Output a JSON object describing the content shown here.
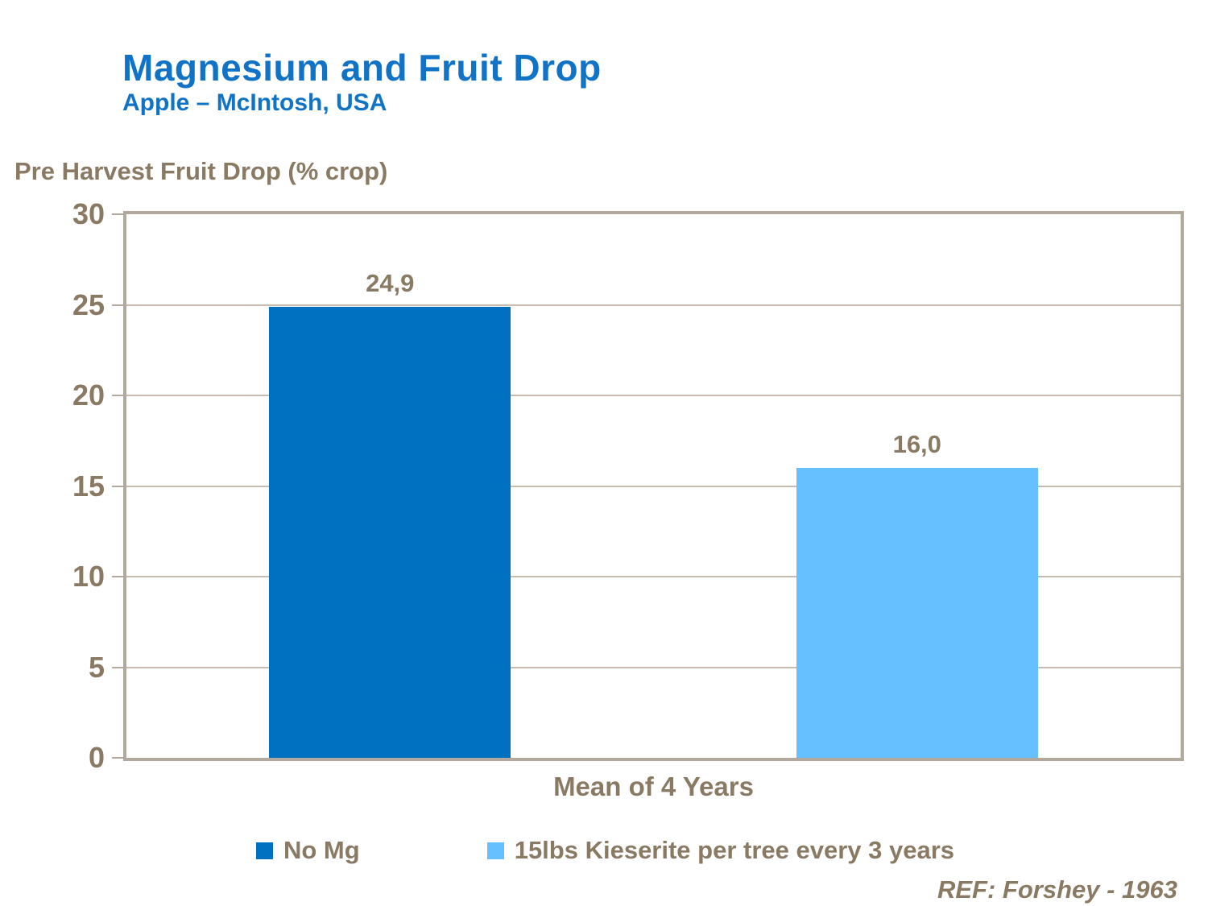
{
  "title": "Magnesium and Fruit Drop",
  "subtitle": "Apple – McIntosh, USA",
  "reference": "REF: Forshey - 1963",
  "colors": {
    "title-blue": "#1073C6",
    "text-brown": "#8A7963",
    "border-tan": "#B3A89C",
    "grid-tan": "#C5BBB0",
    "bar-dark-blue": "#0070C0",
    "bar-light-blue": "#66BFFF"
  },
  "chart_data": {
    "type": "bar",
    "title": "Magnesium and Fruit Drop",
    "subtitle": "Apple – McIntosh, USA",
    "categories": [
      "Mean of 4 Years"
    ],
    "series": [
      {
        "name": "No Mg",
        "values": [
          24.9
        ],
        "label": "24,9",
        "color": "#0070C0"
      },
      {
        "name": "15lbs Kieserite per tree every 3 years",
        "values": [
          16.0
        ],
        "label": "16,0",
        "color": "#66BFFF"
      }
    ],
    "xlabel": "Mean of 4 Years",
    "ylabel": "Pre Harvest Fruit Drop (% crop)",
    "ylim": [
      0,
      30
    ],
    "yticks": [
      0,
      5,
      10,
      15,
      20,
      25,
      30
    ],
    "grid": true,
    "legend_position": "bottom",
    "bar_width_fraction": 0.229,
    "reference": "REF: Forshey - 1963"
  }
}
